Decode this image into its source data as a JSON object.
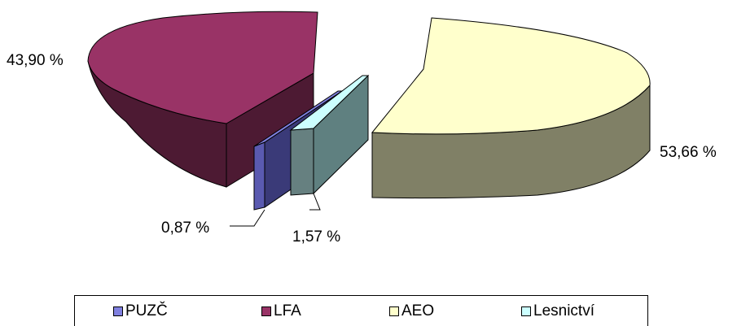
{
  "chart_data": {
    "type": "pie",
    "title": "",
    "series": [
      {
        "name": "PUZČ",
        "value": 0.87,
        "label": "0,87 %",
        "color": "#8080e0",
        "side_color": "#3a3a78"
      },
      {
        "name": "LFA",
        "value": 43.9,
        "label": "43,90 %",
        "color": "#993366",
        "side_color": "#4d1a33"
      },
      {
        "name": "AEO",
        "value": 53.66,
        "label": "53,66 %",
        "color": "#ffffcc",
        "side_color": "#808066"
      },
      {
        "name": "Lesnictví",
        "value": 1.57,
        "label": "1,57 %",
        "color": "#ccffff",
        "side_color": "#668080"
      }
    ],
    "legend_position": "bottom",
    "style": "3d-exploded"
  }
}
